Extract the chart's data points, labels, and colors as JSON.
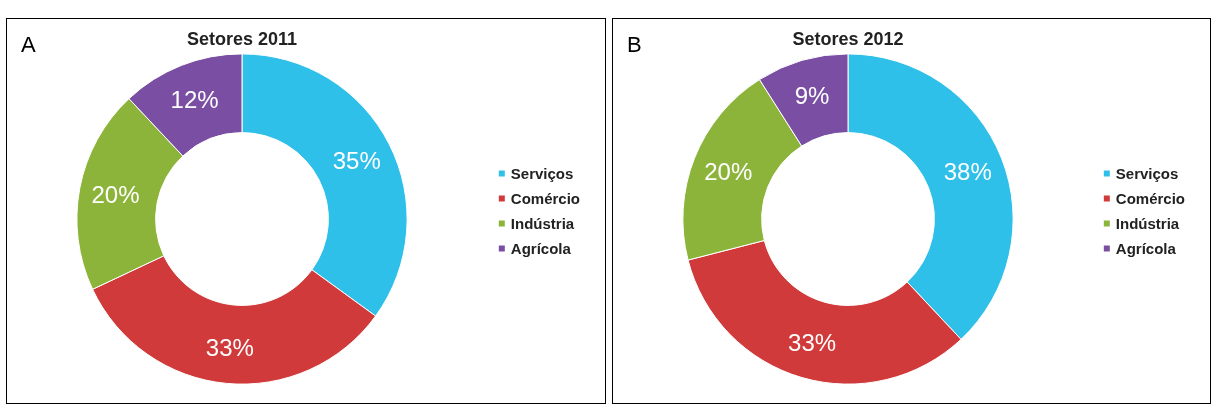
{
  "chart_data": [
    {
      "type": "donut",
      "title": "Setores 2011",
      "annotations": [
        "A"
      ],
      "categories": [
        "Serviços",
        "Comércio",
        "Indústria",
        "Agrícola"
      ],
      "values": [
        35,
        33,
        20,
        12
      ],
      "value_labels": [
        "35%",
        "33%",
        "20%",
        "12%"
      ],
      "colors": [
        "#2fc0ea",
        "#d03a3a",
        "#8db43a",
        "#7a4fa3"
      ],
      "legend": "right"
    },
    {
      "type": "donut",
      "title": "Setores 2012",
      "annotations": [
        "B"
      ],
      "categories": [
        "Serviços",
        "Comércio",
        "Indústria",
        "Agrícola"
      ],
      "values": [
        38,
        33,
        20,
        9
      ],
      "value_labels": [
        "38%",
        "33%",
        "20%",
        "9%"
      ],
      "colors": [
        "#2fc0ea",
        "#d03a3a",
        "#8db43a",
        "#7a4fa3"
      ],
      "legend": "right"
    }
  ]
}
